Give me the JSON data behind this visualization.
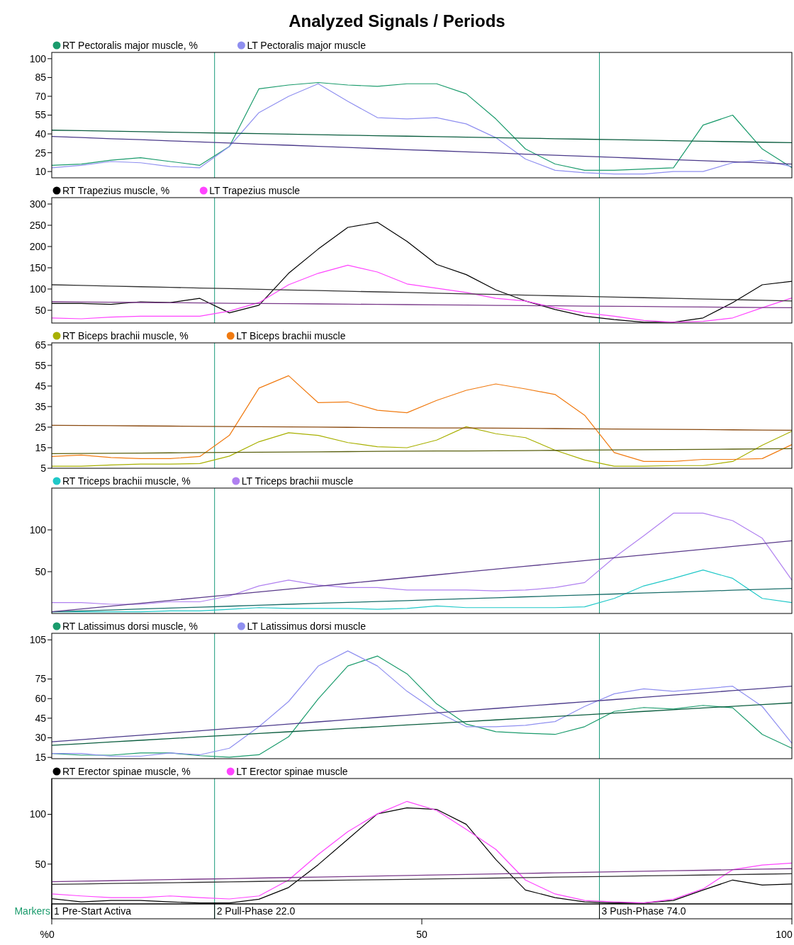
{
  "chart_data": [
    {
      "type": "line",
      "title": "Analyzed Signals / Periods",
      "legend": "top left",
      "tick_labels": "y",
      "xlim": [
        0,
        100
      ],
      "ylim": [
        5,
        105
      ],
      "yticks": [
        10,
        25,
        40,
        55,
        70,
        85,
        100
      ],
      "x": [
        0,
        4,
        8,
        12,
        16,
        20,
        24,
        28,
        32,
        36,
        40,
        44,
        48,
        52,
        56,
        60,
        64,
        68,
        72,
        76,
        80,
        84,
        88,
        92,
        96,
        100
      ],
      "ref_lines": [
        {
          "axis": "x",
          "value": 22,
          "color": "#1a9b7a"
        },
        {
          "axis": "x",
          "value": 74,
          "color": "#1a9b7a"
        }
      ],
      "series": [
        {
          "name": "RT Pectoralis major muscle, %",
          "color": "#1a9b6c",
          "values": [
            15,
            16,
            19,
            21,
            18,
            15,
            30,
            76,
            79,
            81,
            79,
            78,
            80,
            80,
            72,
            52,
            28,
            16,
            11,
            11,
            12,
            13,
            47,
            55,
            28,
            13
          ]
        },
        {
          "name": "LT Pectoralis major muscle",
          "color": "#8f8ff0",
          "values": [
            13,
            15,
            18,
            17,
            14,
            13,
            30,
            57,
            70,
            80,
            66,
            53,
            52,
            53,
            48,
            37,
            20,
            11,
            9,
            8,
            8,
            10,
            10,
            17,
            19,
            14
          ]
        },
        {
          "type": "line",
          "color": "#0b5d3f",
          "values": [
            43,
            42.6,
            42.2,
            41.8,
            41.4,
            41,
            40.6,
            40.2,
            39.8,
            39.4,
            39,
            38.6,
            38.2,
            37.8,
            37.4,
            37,
            36.6,
            36.2,
            35.8,
            35.4,
            35,
            34.6,
            34.2,
            33.8,
            33.4,
            33
          ]
        },
        {
          "type": "line",
          "color": "#4b3a8a",
          "values": [
            38,
            37.1,
            36.2,
            35.4,
            34.5,
            33.6,
            32.7,
            31.8,
            31,
            30.1,
            29.2,
            28.3,
            27.4,
            26.6,
            25.7,
            24.8,
            23.9,
            23,
            22.2,
            21.3,
            20.4,
            19.5,
            18.6,
            17.8,
            16.9,
            16
          ]
        }
      ]
    },
    {
      "type": "line",
      "legend": "top left",
      "tick_labels": "y",
      "xlim": [
        0,
        100
      ],
      "ylim": [
        20,
        315
      ],
      "yticks": [
        50,
        100,
        150,
        200,
        250,
        300
      ],
      "x": [
        0,
        4,
        8,
        12,
        16,
        20,
        24,
        28,
        32,
        36,
        40,
        44,
        48,
        52,
        56,
        60,
        64,
        68,
        72,
        76,
        80,
        84,
        88,
        92,
        96,
        100
      ],
      "ref_lines": [
        {
          "axis": "x",
          "value": 22,
          "color": "#1a9b7a"
        },
        {
          "axis": "x",
          "value": 74,
          "color": "#1a9b7a"
        }
      ],
      "series": [
        {
          "name": "RT Trapezius muscle, %",
          "color": "#000000",
          "values": [
            66,
            66,
            64,
            70,
            68,
            78,
            44,
            62,
            137,
            194,
            245,
            257,
            212,
            158,
            134,
            98,
            72,
            52,
            36,
            28,
            22,
            22,
            32,
            68,
            110,
            118
          ]
        },
        {
          "name": "LT Trapezius muscle",
          "color": "#ff44ff",
          "values": [
            32,
            30,
            34,
            36,
            36,
            36,
            48,
            68,
            110,
            137,
            156,
            140,
            112,
            102,
            92,
            78,
            72,
            56,
            44,
            36,
            26,
            22,
            24,
            32,
            56,
            79
          ]
        },
        {
          "type": "line",
          "color": "#333333",
          "values": [
            110,
            108.5,
            107,
            105.4,
            103.9,
            102.4,
            100.9,
            99.4,
            97.8,
            96.3,
            94.8,
            93.3,
            91.8,
            90.2,
            88.7,
            87.2,
            85.7,
            84.2,
            82.6,
            81.1,
            79.6,
            78.1,
            76.6,
            75,
            73.5,
            72
          ]
        },
        {
          "type": "line",
          "color": "#7a3a8a",
          "values": [
            70,
            69.4,
            68.9,
            68.3,
            67.8,
            67.2,
            66.6,
            66.1,
            65.5,
            65,
            64.4,
            63.8,
            63.3,
            62.7,
            62.2,
            61.6,
            61,
            60.5,
            59.9,
            59.4,
            58.8,
            58.2,
            57.7,
            57.1,
            56.6,
            56
          ]
        }
      ]
    },
    {
      "type": "line",
      "legend": "top left",
      "tick_labels": "y",
      "xlim": [
        0,
        100
      ],
      "ylim": [
        5,
        66
      ],
      "yticks": [
        5,
        15,
        25,
        35,
        45,
        55,
        65
      ],
      "x": [
        0,
        4,
        8,
        12,
        16,
        20,
        24,
        28,
        32,
        36,
        40,
        44,
        48,
        52,
        56,
        60,
        64,
        68,
        72,
        76,
        80,
        84,
        88,
        92,
        96,
        100
      ],
      "ref_lines": [
        {
          "axis": "x",
          "value": 22,
          "color": "#1a9b7a"
        },
        {
          "axis": "x",
          "value": 74,
          "color": "#1a9b7a"
        }
      ],
      "series": [
        {
          "name": "RT Biceps brachii muscle, %",
          "color": "#a8b000",
          "values": [
            6,
            6,
            6.6,
            7,
            7,
            7.3,
            10.9,
            17.9,
            22.3,
            21,
            17.5,
            15.5,
            15,
            18.7,
            25.2,
            21.8,
            19.9,
            13.8,
            9,
            6,
            6,
            6.3,
            6.3,
            8.3,
            16.2,
            23
          ]
        },
        {
          "name": "LT Biceps brachii muscle",
          "color": "#f07a10",
          "values": [
            10.7,
            11.4,
            10.2,
            9.7,
            9.7,
            10.7,
            21,
            44,
            50,
            36.9,
            37.3,
            33.2,
            32,
            38,
            42.9,
            46,
            43.6,
            40.9,
            30.8,
            12.6,
            8.3,
            8.3,
            9.3,
            9.3,
            9.7,
            16.5
          ]
        },
        {
          "type": "line",
          "color": "#5a6010",
          "values": [
            12.1,
            12.2,
            12.3,
            12.4,
            12.5,
            12.6,
            12.7,
            12.8,
            12.9,
            13,
            13.1,
            13.2,
            13.3,
            13.4,
            13.4,
            13.5,
            13.6,
            13.7,
            13.8,
            13.9,
            14,
            14.1,
            14.2,
            14.3,
            14.4,
            14.5
          ]
        },
        {
          "type": "line",
          "color": "#8a4a10",
          "values": [
            25.9,
            25.8,
            25.7,
            25.6,
            25.5,
            25.4,
            25.3,
            25.2,
            25.1,
            25,
            24.9,
            24.8,
            24.7,
            24.6,
            24.6,
            24.5,
            24.4,
            24.3,
            24.2,
            24.1,
            24,
            23.9,
            23.8,
            23.7,
            23.6,
            23.5
          ]
        }
      ]
    },
    {
      "type": "line",
      "legend": "top left",
      "tick_labels": "y",
      "xlim": [
        0,
        100
      ],
      "ylim": [
        0,
        150
      ],
      "yticks": [
        50,
        100
      ],
      "x": [
        0,
        4,
        8,
        12,
        16,
        20,
        24,
        28,
        32,
        36,
        40,
        44,
        48,
        52,
        56,
        60,
        64,
        68,
        72,
        76,
        80,
        84,
        88,
        92,
        96,
        100
      ],
      "ref_lines": [
        {
          "axis": "x",
          "value": 22,
          "color": "#1a9b7a"
        },
        {
          "axis": "x",
          "value": 74,
          "color": "#1a9b7a"
        }
      ],
      "series": [
        {
          "name": "RT Triceps brachii muscle, %",
          "color": "#20c8c8",
          "values": [
            2,
            2,
            2,
            2,
            3,
            3,
            5,
            7,
            6,
            6,
            6,
            5,
            6,
            9,
            7,
            7,
            7,
            7,
            8,
            18,
            33,
            42,
            52,
            42,
            18,
            13
          ]
        },
        {
          "name": "LT Triceps brachii muscle",
          "color": "#b080f0",
          "values": [
            13,
            13,
            11,
            11,
            14,
            14,
            21,
            33,
            40,
            34,
            31,
            31,
            28,
            28,
            28,
            27,
            28,
            31,
            37,
            67,
            93,
            120,
            120,
            111,
            90,
            40
          ]
        },
        {
          "type": "line",
          "color": "#1a6e6a",
          "values": [
            2,
            3.1,
            4.2,
            5.4,
            6.5,
            7.6,
            8.7,
            9.8,
            11,
            12.1,
            13.2,
            14.3,
            15.4,
            16.6,
            17.7,
            18.8,
            19.9,
            21,
            22.2,
            23.3,
            24.4,
            25.5,
            26.6,
            27.8,
            28.9,
            30
          ]
        },
        {
          "type": "line",
          "color": "#5a3a8a",
          "values": [
            2,
            5.4,
            8.8,
            12.2,
            15.6,
            19,
            22.4,
            25.8,
            29.2,
            32.6,
            36,
            39.4,
            42.8,
            46.2,
            49.6,
            53,
            56.4,
            59.8,
            63.2,
            66.6,
            70,
            73.4,
            76.8,
            80.2,
            83.6,
            87
          ]
        }
      ]
    },
    {
      "type": "line",
      "legend": "top left",
      "tick_labels": "y",
      "xlim": [
        0,
        100
      ],
      "ylim": [
        14,
        110
      ],
      "yticks": [
        15,
        30,
        45,
        60,
        75,
        105
      ],
      "x": [
        0,
        4,
        8,
        12,
        16,
        20,
        24,
        28,
        32,
        36,
        40,
        44,
        48,
        52,
        56,
        60,
        64,
        68,
        72,
        76,
        80,
        84,
        88,
        92,
        96,
        100
      ],
      "ref_lines": [
        {
          "axis": "x",
          "value": 22,
          "color": "#1a9b7a"
        },
        {
          "axis": "x",
          "value": 74,
          "color": "#1a9b7a"
        }
      ],
      "series": [
        {
          "name": "RT Latissimus dorsi muscle, %",
          "color": "#1a9b6c",
          "values": [
            18,
            16.7,
            16.7,
            18.4,
            18.4,
            16.3,
            15.2,
            17,
            30.8,
            59.8,
            85,
            92.6,
            79,
            56,
            40.5,
            34.7,
            33.5,
            32.6,
            38.5,
            50.2,
            53.2,
            52,
            54.8,
            53,
            32.6,
            22
          ]
        },
        {
          "name": "LT Latissimus dorsi muscle",
          "color": "#8f8ff0",
          "values": [
            18,
            18,
            15.9,
            15.9,
            18.4,
            17,
            22,
            38.5,
            57.8,
            84.9,
            96.5,
            85,
            65.6,
            50.2,
            38.5,
            38.5,
            39.6,
            42.4,
            54,
            63.7,
            67.5,
            65.6,
            67.5,
            69.5,
            54,
            25.8
          ]
        },
        {
          "type": "line",
          "color": "#0b5d3f",
          "values": [
            24.2,
            25.5,
            26.8,
            28.1,
            29.4,
            30.7,
            32,
            33.3,
            34.6,
            35.9,
            37.2,
            38.5,
            39.8,
            41.1,
            42.4,
            43.7,
            45,
            46.3,
            47.6,
            48.9,
            50.2,
            51.5,
            52.8,
            54.1,
            55.4,
            56.7
          ]
        },
        {
          "type": "line",
          "color": "#4b3a8a",
          "values": [
            26.9,
            28.6,
            30.3,
            32,
            33.7,
            35.4,
            37.1,
            38.8,
            40.5,
            42.2,
            43.9,
            45.6,
            47.3,
            49.1,
            50.8,
            52.5,
            54.2,
            55.9,
            57.6,
            59.3,
            61,
            62.7,
            64.4,
            66.1,
            67.8,
            69.5
          ]
        }
      ]
    },
    {
      "type": "line",
      "legend": "top left",
      "xlabel": "%",
      "xlim": [
        0,
        100
      ],
      "ylim": [
        10,
        136
      ],
      "yticks": [
        50,
        100
      ],
      "xticks": [
        0,
        50,
        100
      ],
      "x": [
        0,
        4,
        8,
        12,
        16,
        20,
        24,
        28,
        32,
        36,
        40,
        44,
        48,
        52,
        56,
        60,
        64,
        68,
        72,
        76,
        80,
        84,
        88,
        92,
        96,
        100
      ],
      "ref_lines": [
        {
          "axis": "x",
          "value": 0,
          "color": "#000000",
          "label": "1 Pre-Start Activa"
        },
        {
          "axis": "x",
          "value": 22,
          "color": "#1a9b7a",
          "label": "2 Pull-Phase 22.0"
        },
        {
          "axis": "x",
          "value": 74,
          "color": "#1a9b7a",
          "label": "3 Push-Phase 74.0"
        }
      ],
      "annotations": [
        "Markers"
      ],
      "series": [
        {
          "name": "RT Erector spinae muscle, %",
          "color": "#000000",
          "values": [
            15.3,
            12,
            13.5,
            13.5,
            12,
            11,
            11,
            14.7,
            26.5,
            49.4,
            75,
            100.5,
            106.6,
            105,
            90,
            54.6,
            24,
            16.3,
            12,
            11,
            11,
            13.5,
            24,
            34,
            29,
            30
          ]
        },
        {
          "name": "LT Erector spinae muscle",
          "color": "#ff44ff",
          "values": [
            20,
            18,
            16.3,
            16.3,
            18,
            16.3,
            15,
            18,
            34,
            59.6,
            82.6,
            100.5,
            113,
            104,
            85,
            64.8,
            34,
            20,
            13.5,
            12,
            11,
            14.7,
            25,
            44.4,
            49,
            51
          ]
        },
        {
          "type": "line",
          "color": "#333333",
          "values": [
            29.6,
            30,
            30.5,
            30.9,
            31.3,
            31.7,
            32.2,
            32.6,
            33,
            33.5,
            33.9,
            34.3,
            34.7,
            35.2,
            35.6,
            36,
            36.4,
            36.9,
            37.3,
            37.7,
            38.2,
            38.6,
            39,
            39.4,
            39.9,
            40.3
          ]
        },
        {
          "type": "line",
          "color": "#7a3a8a",
          "values": [
            32.3,
            32.8,
            33.3,
            33.9,
            34.4,
            34.9,
            35.4,
            36,
            36.5,
            37,
            37.5,
            38,
            38.6,
            39.1,
            39.6,
            40.1,
            40.7,
            41.2,
            41.7,
            42.3,
            42.8,
            43.3,
            43.8,
            44.4,
            44.9,
            45.4
          ]
        }
      ]
    }
  ]
}
